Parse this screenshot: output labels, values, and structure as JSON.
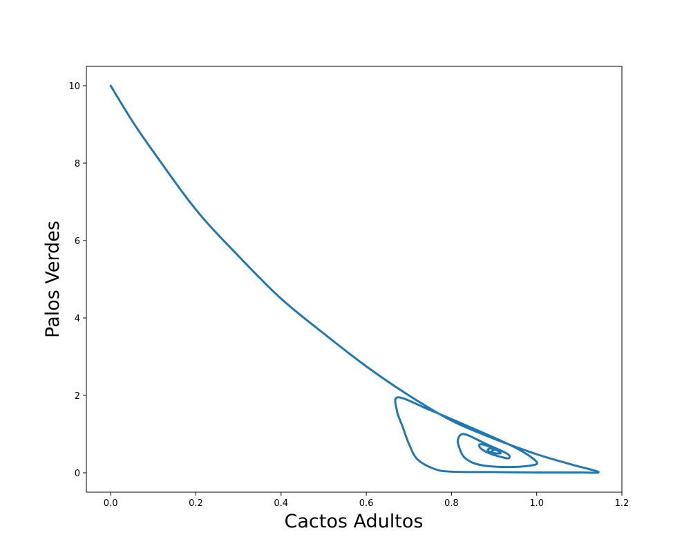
{
  "chart_data": {
    "type": "line",
    "title": "",
    "xlabel": "Cactos Adultos",
    "ylabel": "Palos Verdes",
    "xlim": [
      -0.057,
      1.2
    ],
    "ylim": [
      -0.5,
      10.5
    ],
    "xticks": [
      0.0,
      0.2,
      0.4,
      0.6,
      0.8,
      1.0,
      1.2
    ],
    "xtick_labels": [
      "0.0",
      "0.2",
      "0.4",
      "0.6",
      "0.8",
      "1.0",
      "1.2"
    ],
    "yticks": [
      0,
      2,
      4,
      6,
      8,
      10
    ],
    "ytick_labels": [
      "0",
      "2",
      "4",
      "6",
      "8",
      "10"
    ],
    "grid": false,
    "series": [
      {
        "color": "#1f77b4",
        "x": [
          0.0,
          0.05,
          0.1,
          0.2,
          0.3,
          0.4,
          0.5,
          0.6,
          0.7,
          0.8,
          0.9,
          1.0,
          1.08,
          1.145,
          1.1,
          1.0,
          0.9,
          0.8,
          0.76,
          0.72,
          0.7,
          0.685,
          0.672,
          0.675,
          0.75,
          0.85,
          0.95,
          1.0,
          0.98,
          0.93,
          0.88,
          0.85,
          0.83,
          0.82,
          0.815,
          0.83,
          0.88,
          0.93,
          0.935,
          0.92,
          0.89,
          0.87,
          0.865,
          0.875,
          0.9,
          0.915,
          0.91,
          0.895,
          0.885,
          0.89,
          0.9,
          0.895
        ],
        "y": [
          10.0,
          9.1,
          8.3,
          6.8,
          5.6,
          4.5,
          3.6,
          2.75,
          2.0,
          1.35,
          0.88,
          0.48,
          0.22,
          0.02,
          0.01,
          0.01,
          0.02,
          0.03,
          0.1,
          0.35,
          0.75,
          1.2,
          1.6,
          1.95,
          1.62,
          1.15,
          0.65,
          0.28,
          0.18,
          0.15,
          0.18,
          0.26,
          0.4,
          0.6,
          0.85,
          1.0,
          0.75,
          0.5,
          0.38,
          0.4,
          0.5,
          0.62,
          0.72,
          0.73,
          0.62,
          0.52,
          0.5,
          0.52,
          0.58,
          0.63,
          0.6,
          0.56
        ]
      }
    ]
  }
}
